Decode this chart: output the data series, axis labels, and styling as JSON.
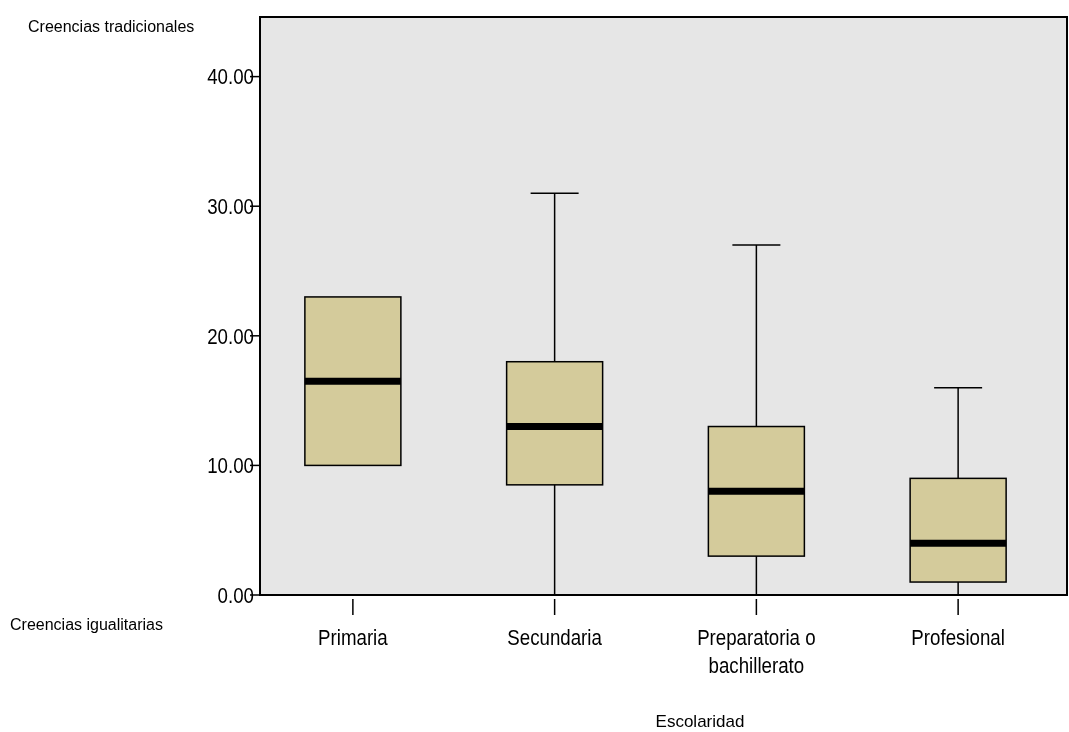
{
  "chart_data": {
    "type": "box",
    "xlabel": "Escolaridad",
    "categories": [
      "Primaria",
      "Secundaria",
      "Preparatoria o bachillerato",
      "Profesional"
    ],
    "color": "#d4cb9b",
    "boxes": [
      {
        "low": 10,
        "q1": 10,
        "median": 16.5,
        "q3": 23,
        "high": 23
      },
      {
        "low": 0,
        "q1": 8.5,
        "median": 13,
        "q3": 18,
        "high": 31
      },
      {
        "low": 0,
        "q1": 3,
        "median": 8,
        "q3": 13,
        "high": 27
      },
      {
        "low": 0,
        "q1": 1,
        "median": 4,
        "q3": 9,
        "high": 16
      }
    ],
    "ylim": [
      0,
      44.6
    ],
    "yticks": [
      {
        "value": 0,
        "label": "0.00"
      },
      {
        "value": 10,
        "label": "10.00"
      },
      {
        "value": 20,
        "label": "20.00"
      },
      {
        "value": 30,
        "label": "30.00"
      },
      {
        "value": 40,
        "label": "40.00"
      }
    ],
    "grid": false,
    "annotations": [
      "Creencias tradicionales",
      "Creencias igualitarias"
    ]
  }
}
